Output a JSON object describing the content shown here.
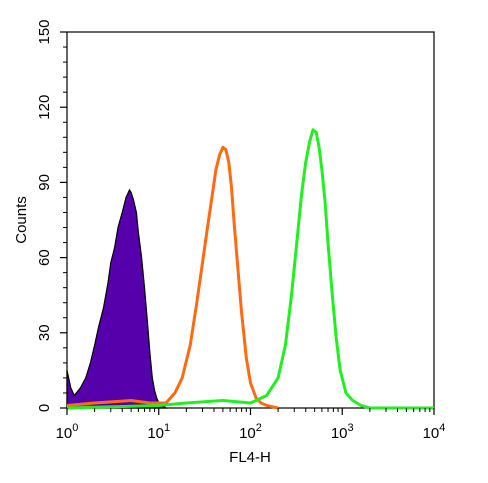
{
  "chart_data": {
    "type": "area",
    "title": "",
    "xlabel": "FL4-H",
    "ylabel": "Counts",
    "x_scale": "log",
    "xlim": [
      1,
      10000
    ],
    "ylim": [
      0,
      150
    ],
    "grid": false,
    "x_ticks": [
      {
        "value": 1,
        "base": "10",
        "exp": "0"
      },
      {
        "value": 10,
        "base": "10",
        "exp": "1"
      },
      {
        "value": 100,
        "base": "10",
        "exp": "2"
      },
      {
        "value": 1000,
        "base": "10",
        "exp": "3"
      },
      {
        "value": 10000,
        "base": "10",
        "exp": "4"
      }
    ],
    "y_ticks": [
      {
        "value": 0,
        "label": "0"
      },
      {
        "value": 30,
        "label": "30"
      },
      {
        "value": 60,
        "label": "60"
      },
      {
        "value": 90,
        "label": "90"
      },
      {
        "value": 120,
        "label": "120"
      },
      {
        "value": 150,
        "label": "150"
      }
    ],
    "series": [
      {
        "color": "#5500aa",
        "fill": true,
        "x": [
          1.0,
          1.1,
          1.2,
          1.4,
          1.6,
          1.8,
          2.0,
          2.2,
          2.5,
          2.8,
          3.0,
          3.3,
          3.6,
          4.0,
          4.4,
          4.8,
          5.0,
          5.3,
          5.7,
          6.0,
          6.5,
          7.0,
          7.5,
          8.0,
          8.5,
          9.0,
          9.5,
          10.0,
          11.0,
          12.0
        ],
        "y": [
          15,
          8,
          5,
          8,
          12,
          18,
          25,
          32,
          40,
          50,
          58,
          64,
          72,
          78,
          84,
          87,
          86,
          83,
          78,
          70,
          60,
          48,
          35,
          22,
          12,
          7,
          4,
          2,
          1,
          0
        ]
      },
      {
        "color": "#ff6a13",
        "fill": false,
        "x": [
          1.0,
          2.0,
          5.0,
          8.0,
          12.0,
          15.0,
          18.0,
          22.0,
          26.0,
          30.0,
          34.0,
          38.0,
          42.0,
          46.0,
          50.0,
          54.0,
          58.0,
          62.0,
          66.0,
          72.0,
          80.0,
          90.0,
          100.0,
          115.0,
          130.0,
          150.0,
          200.0
        ],
        "y": [
          1,
          2,
          3,
          2,
          2,
          6,
          12,
          25,
          42,
          58,
          72,
          84,
          95,
          101,
          104,
          103,
          98,
          88,
          75,
          58,
          38,
          20,
          10,
          4,
          2,
          1,
          0
        ]
      },
      {
        "color": "#22ee22",
        "fill": false,
        "x": [
          1.0,
          10.0,
          20.0,
          50.0,
          100.0,
          150.0,
          200.0,
          240.0,
          280.0,
          320.0,
          360.0,
          400.0,
          440.0,
          480.0,
          520.0,
          560.0,
          600.0,
          650.0,
          700.0,
          780.0,
          860.0,
          950.0,
          1100.0,
          1300.0,
          1600.0,
          2000.0,
          10000.0
        ],
        "y": [
          0,
          1,
          2,
          3,
          2,
          5,
          12,
          25,
          45,
          66,
          85,
          98,
          106,
          111,
          110,
          104,
          95,
          82,
          66,
          45,
          28,
          15,
          6,
          3,
          1,
          0,
          0
        ]
      }
    ]
  }
}
